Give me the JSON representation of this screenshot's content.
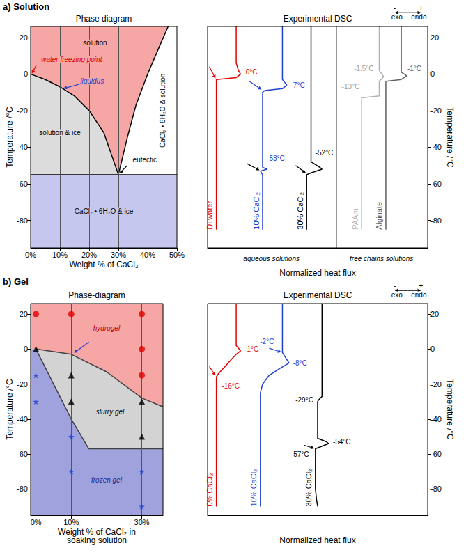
{
  "section_titles": [
    "a) Solution",
    "b) Gel"
  ],
  "chart_data": [
    {
      "type": "phase_diagram",
      "title": "Phase diagram",
      "x_label": "Weight % of CaCl₂",
      "y_label": "Temperature /°C",
      "xlim": [
        0,
        50
      ],
      "xticks": [
        {
          "value": 0,
          "label": "0%"
        },
        {
          "value": 10,
          "label": "10%"
        },
        {
          "value": 20,
          "label": "20%"
        },
        {
          "value": 30,
          "label": "30%"
        },
        {
          "value": 40,
          "label": "40%"
        },
        {
          "value": 50,
          "label": "50%"
        }
      ],
      "ylim": [
        -95,
        26
      ],
      "yticks": [
        -80,
        -60,
        -40,
        -20,
        0,
        20
      ],
      "grid": "x",
      "regions": [
        {
          "color": "#f7a6a6",
          "x": [
            0,
            0,
            5,
            10,
            15,
            20,
            25,
            30,
            33,
            36,
            40,
            44,
            47
          ],
          "y": [
            26,
            0,
            -3,
            -7,
            -12,
            -20,
            -32,
            -55,
            -35,
            -17,
            0,
            15,
            26
          ]
        },
        {
          "color": "#dcdcdc",
          "x": [
            0,
            5,
            10,
            15,
            20,
            25,
            30,
            0
          ],
          "y": [
            0,
            -3,
            -7,
            -12,
            -20,
            -32,
            -55,
            -55
          ]
        },
        {
          "color": "#c6c7ee",
          "x": [
            0,
            50,
            50,
            0
          ],
          "y": [
            -55,
            -55,
            -95,
            -95
          ]
        }
      ],
      "lines": [
        {
          "color": "#000000",
          "x": [
            0,
            5,
            10,
            15,
            20,
            25,
            30,
            33,
            36,
            40,
            44,
            47
          ],
          "y": [
            0,
            -3,
            -7,
            -12,
            -20,
            -32,
            -55,
            -35,
            -17,
            0,
            15,
            26
          ]
        },
        {
          "color": "#000000",
          "x": [
            0,
            50
          ],
          "y": [
            -55,
            -55
          ]
        }
      ],
      "annotations": [
        {
          "text": "solution",
          "x": 22,
          "y": 17,
          "color": "#000000"
        },
        {
          "text": "solution & ice",
          "x": 10,
          "y": -32,
          "color": "#000000"
        },
        {
          "text": "CaCl₂ • 6H₂O & solution",
          "x": 45,
          "y": -20,
          "color": "#000000",
          "orientation": "vertical"
        },
        {
          "text": "CaCl₂ • 6H₂O & ice",
          "x": 25,
          "y": -75,
          "color": "#000000"
        },
        {
          "text": "water freezing point",
          "x": 14,
          "y": 8,
          "color": "#e00000"
        },
        {
          "text": "liquidus",
          "x": 21,
          "y": -4,
          "color": "#1f3fd0"
        },
        {
          "text": "eutectic",
          "x": 39,
          "y": -47,
          "color": "#000000"
        }
      ],
      "arrows": [
        {
          "from": [
            2,
            5
          ],
          "to": [
            0.4,
            0.3
          ],
          "color": "#e00000"
        },
        {
          "from": [
            16.8,
            -5.5
          ],
          "to": [
            11.2,
            -7.9
          ],
          "color": "#1f3fd0"
        },
        {
          "from": [
            33,
            -50
          ],
          "to": [
            30.4,
            -54.3
          ],
          "color": "#000000"
        }
      ]
    },
    {
      "type": "line",
      "title": "Experimental DSC",
      "x_label": "Normalized heat flux",
      "y_label": "Temperature /°C",
      "xlim": [
        0,
        100
      ],
      "ylim": [
        -95,
        26
      ],
      "yticks": [
        -80,
        -60,
        -40,
        -20,
        0,
        20
      ],
      "tick_labels": "y",
      "series": [
        {
          "name": "DI water",
          "color": "#e00000",
          "x": [
            13,
            13,
            14,
            15,
            13,
            4,
            4
          ],
          "y": [
            26,
            6,
            2,
            0,
            -2,
            -3,
            -85
          ]
        },
        {
          "name": "10% CaCl₂",
          "color": "#1f3fd0",
          "x": [
            34,
            34,
            36,
            34,
            26,
            25,
            25,
            27,
            24,
            25,
            25
          ],
          "y": [
            26,
            -3,
            -6,
            -8,
            -9,
            -10,
            -51,
            -52,
            -53,
            -55,
            -85
          ]
        },
        {
          "name": "30% CaCl₂",
          "color": "#000000",
          "x": [
            47,
            47,
            51,
            52,
            47,
            45,
            45
          ],
          "y": [
            26,
            -48,
            -51,
            -52,
            -54,
            -55,
            -85
          ]
        },
        {
          "name": "PAAm",
          "color": "#b0b0b0",
          "x": [
            78,
            78,
            80,
            78,
            78,
            70,
            70
          ],
          "y": [
            26,
            2,
            -1.5,
            -4,
            -12,
            -13,
            -85
          ]
        },
        {
          "name": "Alginate",
          "color": "#606060",
          "x": [
            88,
            88,
            90.5,
            88,
            81,
            81
          ],
          "y": [
            26,
            1,
            -1,
            -3,
            -4,
            -85
          ]
        }
      ],
      "dividers": [
        58.5
      ],
      "annotations": [
        {
          "text": "0°C",
          "x": 20,
          "y": 1,
          "color": "#e00000"
        },
        {
          "text": "-7°C",
          "x": 41,
          "y": -6,
          "color": "#1f3fd0"
        },
        {
          "text": "-53°C",
          "x": 31,
          "y": -46,
          "color": "#1f3fd0"
        },
        {
          "text": "-52°C",
          "x": 53,
          "y": -43,
          "color": "#000000"
        },
        {
          "text": "-1.5°C",
          "x": 71,
          "y": 3,
          "color": "#a0a0a0"
        },
        {
          "text": "-13°C",
          "x": 65,
          "y": -7,
          "color": "#a0a0a0"
        },
        {
          "text": "-1°C",
          "x": 94,
          "y": 3,
          "color": "#606060"
        },
        {
          "text": "aqueous solutions",
          "x": 29,
          "y": -101,
          "color": "#000000"
        },
        {
          "text": "free chains solutions",
          "x": 79,
          "y": -101,
          "color": "#000000"
        },
        {
          "text": "exo",
          "x": 86,
          "y": 31,
          "color": "#000000"
        },
        {
          "text": "endo",
          "x": 96,
          "y": 31,
          "color": "#000000"
        },
        {
          "text": "-",
          "x": 85,
          "y": 36,
          "color": "#000000"
        },
        {
          "text": "+",
          "x": 97,
          "y": 36,
          "color": "#000000"
        }
      ],
      "arrows": [
        {
          "from": [
            0.8,
            4
          ],
          "to": [
            3.6,
            -2.4
          ],
          "color": "#e00000"
        },
        {
          "from": [
            19,
            -4
          ],
          "to": [
            24.5,
            -8.5
          ],
          "color": "#1f3fd0"
        },
        {
          "from": [
            18,
            -49
          ],
          "to": [
            23.6,
            -52.6
          ],
          "color": "#000000"
        },
        {
          "from": [
            40,
            -50
          ],
          "to": [
            44.6,
            -54
          ],
          "color": "#000000"
        },
        {
          "from": [
            91,
            33.5
          ],
          "to": [
            85,
            33.5
          ],
          "color": "#000000"
        },
        {
          "from": [
            91,
            33.5
          ],
          "to": [
            97,
            33.5
          ],
          "color": "#000000"
        }
      ]
    },
    {
      "type": "phase_diagram",
      "title": "Phase-diagram",
      "x_label": "Weight % of CaCl₂ in soaking solution",
      "y_label": "Temperature /°C",
      "xlim": [
        -1.5,
        36
      ],
      "xticks": [
        {
          "value": 0,
          "label": "0%"
        },
        {
          "value": 10,
          "label": "10%"
        },
        {
          "value": 30,
          "label": "30%"
        }
      ],
      "ylim": [
        -95,
        26
      ],
      "yticks": [
        -80,
        -60,
        -40,
        -20,
        0,
        20
      ],
      "grid": "x",
      "regions": [
        {
          "color": "#f7a6a6",
          "x": [
            -1.5,
            -1.5,
            0,
            10,
            20,
            30,
            36,
            36
          ],
          "y": [
            26,
            0,
            0,
            -3,
            -13,
            -28,
            -33,
            26
          ]
        },
        {
          "color": "#d3d3d3",
          "x": [
            0,
            10,
            20,
            30,
            36,
            36,
            15,
            10,
            5
          ],
          "y": [
            0,
            -3,
            -13,
            -28,
            -33,
            -57,
            -57,
            -40,
            -20
          ]
        },
        {
          "color": "#9fa2dc",
          "x": [
            -1.5,
            -1.5,
            0,
            5,
            10,
            15,
            36,
            36
          ],
          "y": [
            -95,
            0,
            0,
            -20,
            -40,
            -57,
            -57,
            -95
          ]
        }
      ],
      "lines": [
        {
          "color": "#404040",
          "x": [
            0,
            10,
            20,
            30,
            36
          ],
          "y": [
            0,
            -3,
            -13,
            -28,
            -33
          ]
        },
        {
          "color": "#404040",
          "x": [
            0,
            5,
            10,
            15,
            36
          ],
          "y": [
            0,
            -20,
            -40,
            -57,
            -57
          ]
        }
      ],
      "series": [
        {
          "color": "#e00000",
          "marker": "circle",
          "x": [
            0,
            10,
            30,
            30,
            30
          ],
          "y": [
            20,
            20,
            20,
            0,
            -15
          ]
        },
        {
          "color": "#000000",
          "marker": "triangle",
          "x": [
            0,
            10,
            10,
            30,
            30
          ],
          "y": [
            0,
            -15,
            -30,
            -30,
            -50
          ]
        },
        {
          "color": "#1f3fd0",
          "marker": "star",
          "x": [
            0,
            0,
            10,
            10,
            30,
            30
          ],
          "y": [
            -15,
            -30,
            -50,
            -70,
            -70,
            -90
          ]
        }
      ],
      "annotations": [
        {
          "text": "hydrogel",
          "x": 20,
          "y": 12,
          "color": "#c00000"
        },
        {
          "text": "slurry gel",
          "x": 21,
          "y": -36,
          "color": "#000000"
        },
        {
          "text": "frozen gel",
          "x": 20,
          "y": -75,
          "color": "#1a2a8a"
        }
      ],
      "arrows": [
        {
          "from": [
            15,
            4
          ],
          "to": [
            10.8,
            -2.2
          ],
          "color": "#1f3fd0"
        }
      ]
    },
    {
      "type": "line",
      "title": "Experimental DSC",
      "x_label": "Normalized heat flux",
      "y_label": "Temperature /°C",
      "xlim": [
        0,
        100
      ],
      "ylim": [
        -95,
        26
      ],
      "yticks": [
        -80,
        -60,
        -40,
        -20,
        0,
        20
      ],
      "tick_labels": "y",
      "series": [
        {
          "name": "0% CaCl₂",
          "color": "#e00000",
          "x": [
            13,
            13,
            15,
            13,
            5,
            4,
            4
          ],
          "y": [
            26,
            2,
            -1,
            -3,
            -14,
            -16,
            -90
          ]
        },
        {
          "name": "10% CaCl₂",
          "color": "#1f3fd0",
          "x": [
            34,
            34,
            36,
            37,
            33,
            28,
            25,
            24,
            24
          ],
          "y": [
            26,
            -2,
            -6,
            -8,
            -11,
            -15,
            -20,
            -25,
            -90
          ]
        },
        {
          "name": "30% CaCl₂",
          "color": "#000000",
          "x": [
            52,
            52,
            50.5,
            50,
            50,
            54,
            55,
            51,
            49,
            49,
            49.5,
            50
          ],
          "y": [
            26,
            -27,
            -29,
            -30,
            -51,
            -53,
            -54,
            -56,
            -57,
            -80,
            -86,
            -90
          ]
        }
      ],
      "annotations": [
        {
          "text": "-1°C",
          "x": 20,
          "y": 0,
          "color": "#e00000"
        },
        {
          "text": "-16°C",
          "x": 10.5,
          "y": -21,
          "color": "#e00000"
        },
        {
          "text": "-2°C",
          "x": 27,
          "y": 4.5,
          "color": "#1f3fd0"
        },
        {
          "text": "-8°C",
          "x": 42,
          "y": -8,
          "color": "#1f3fd0"
        },
        {
          "text": "-29°C",
          "x": 44,
          "y": -29,
          "color": "#000000"
        },
        {
          "text": "-54°C",
          "x": 61,
          "y": -53,
          "color": "#000000"
        },
        {
          "text": "-57°C",
          "x": 42,
          "y": -60,
          "color": "#000000"
        },
        {
          "text": "exo",
          "x": 86,
          "y": 31,
          "color": "#000000"
        },
        {
          "text": "endo",
          "x": 96,
          "y": 31,
          "color": "#000000"
        },
        {
          "text": "-",
          "x": 85,
          "y": 36,
          "color": "#000000"
        },
        {
          "text": "+",
          "x": 97,
          "y": 36,
          "color": "#000000"
        }
      ],
      "arrows": [
        {
          "from": [
            0.8,
            -10
          ],
          "to": [
            3.6,
            -15.2
          ],
          "color": "#e00000"
        },
        {
          "from": [
            28,
            0.5
          ],
          "to": [
            33.5,
            -1.8
          ],
          "color": "#1f3fd0"
        },
        {
          "from": [
            44,
            -55
          ],
          "to": [
            48.5,
            -56.8
          ],
          "color": "#000000"
        },
        {
          "from": [
            91,
            33.5
          ],
          "to": [
            85,
            33.5
          ],
          "color": "#000000"
        },
        {
          "from": [
            91,
            33.5
          ],
          "to": [
            97,
            33.5
          ],
          "color": "#000000"
        }
      ]
    }
  ]
}
